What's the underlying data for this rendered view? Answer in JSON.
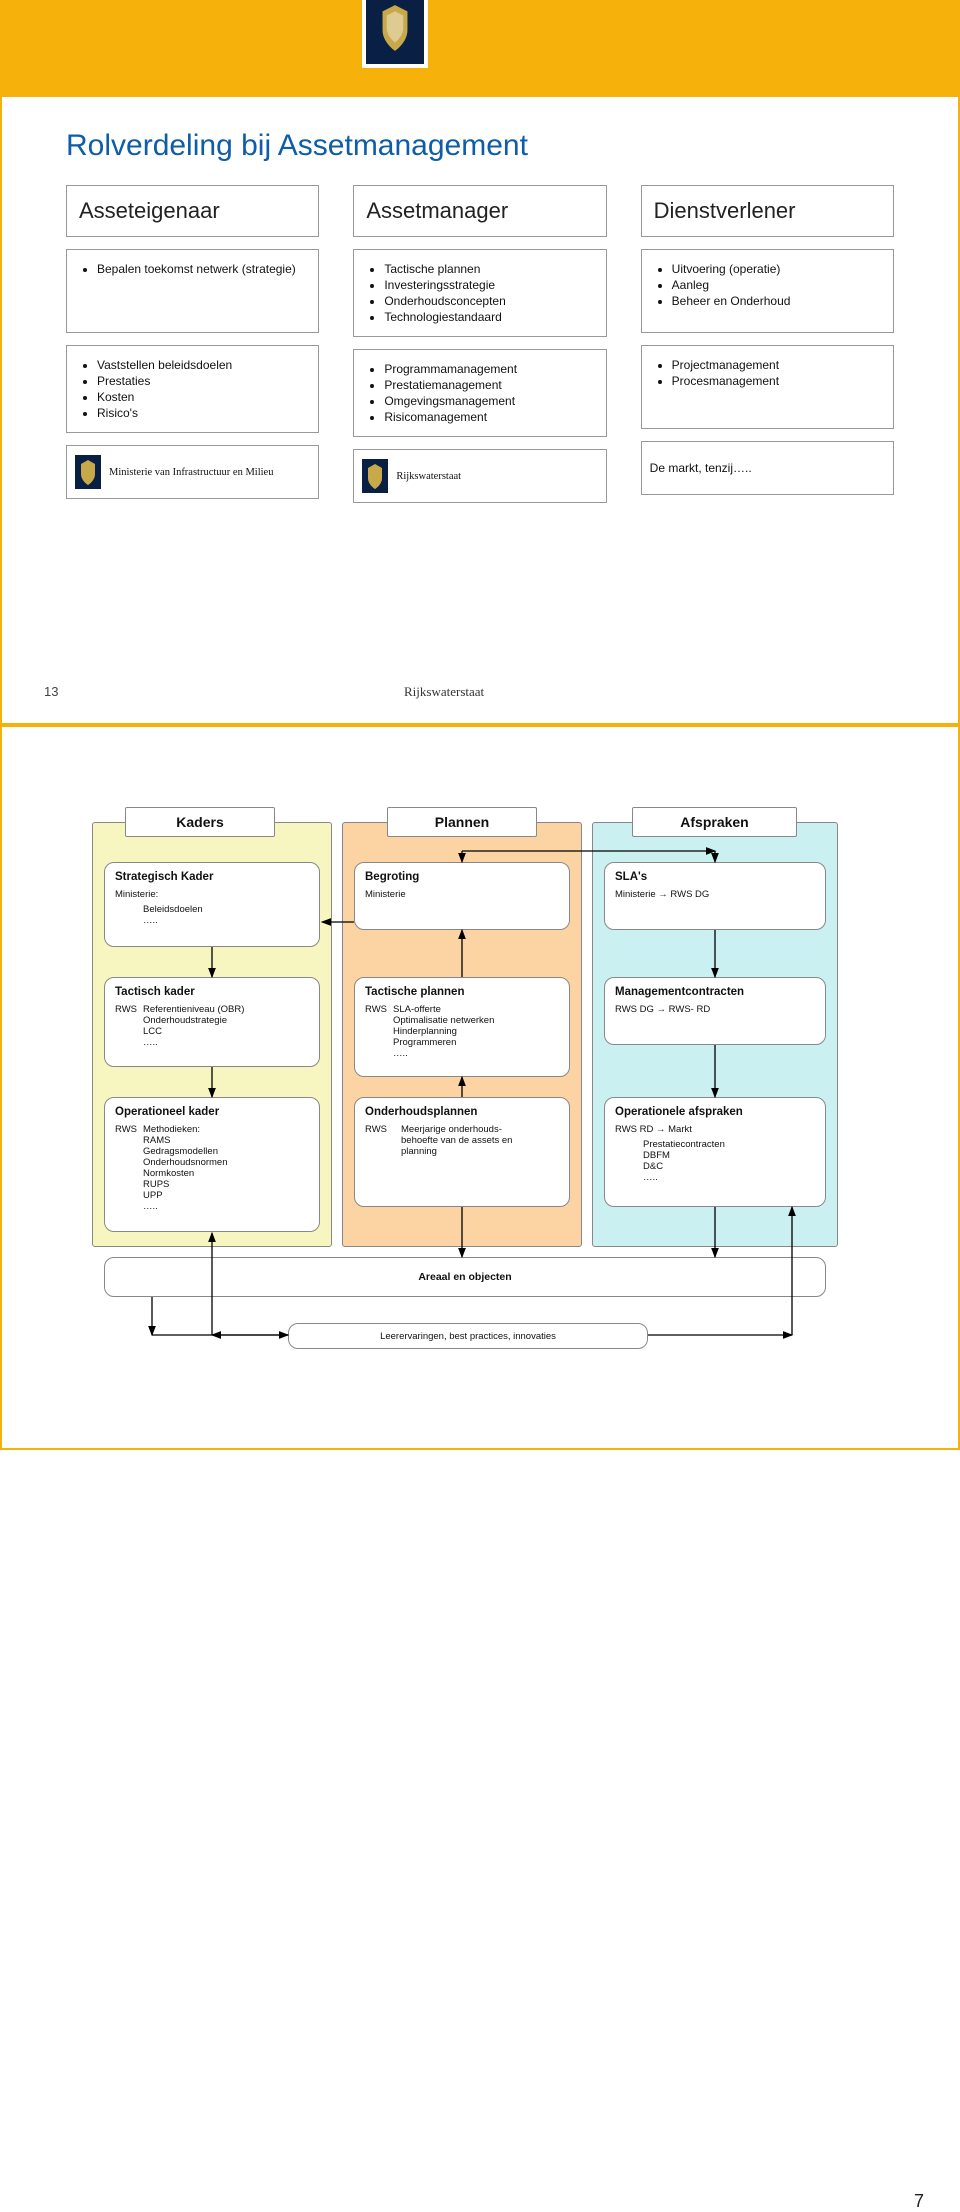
{
  "colors": {
    "gold": "#f6b20b",
    "blue_title": "#0e5da8",
    "yellow_bg": "#f7f6c1",
    "orange_bg": "#fcd3a2",
    "cyan_bg": "#cbf0f2",
    "navy_crest": "#0a1f44"
  },
  "slide1": {
    "title": "Rolverdeling bij Assetmanagement",
    "page_number": "13",
    "footer_rws": "Rijkswaterstaat",
    "columns": [
      {
        "header": "Asseteigenaar",
        "box_a": [
          "Bepalen toekomst netwerk (strategie)"
        ],
        "box_b": [
          "Vaststellen beleidsdoelen",
          "Prestaties",
          "Kosten",
          "Risico's"
        ],
        "org": "Ministerie van Infrastructuur en Milieu",
        "org_has_crest": true
      },
      {
        "header": "Assetmanager",
        "box_a": [
          "Tactische plannen",
          "Investeringsstrategie",
          "Onderhoudsconcepten",
          "Technologiestandaard"
        ],
        "box_b": [
          "Programmamanagement",
          "Prestatiemanagement",
          "Omgevingsmanagement",
          "Risicomanagement"
        ],
        "org": "Rijkswaterstaat",
        "org_has_crest": true
      },
      {
        "header": "Dienstverlener",
        "box_a": [
          "Uitvoering (operatie)",
          "Aanleg",
          "Beheer en Onderhoud"
        ],
        "box_b": [
          "Projectmanagement",
          "Procesmanagement"
        ],
        "org": "De markt, tenzij…..",
        "org_has_crest": false
      }
    ]
  },
  "slide2": {
    "tabs": {
      "kaders": "Kaders",
      "plannen": "Plannen",
      "afspraken": "Afspraken"
    },
    "row1": {
      "a": {
        "title": "Strategisch Kader",
        "sub": "Ministerie:",
        "lines": [
          "Beleidsdoelen",
          "….."
        ]
      },
      "b": {
        "title": "Begroting",
        "sub": "Ministerie"
      },
      "c": {
        "title": "SLA's",
        "sub": "Ministerie → RWS DG"
      }
    },
    "row2": {
      "a": {
        "title": "Tactisch kader",
        "sub": "RWS",
        "lines": [
          "Referentieniveau (OBR)",
          "Onderhoudstrategie",
          "LCC",
          "….."
        ]
      },
      "b": {
        "title": "Tactische plannen",
        "sub": "RWS",
        "lines": [
          "SLA-offerte",
          "Optimalisatie netwerken",
          "Hinderplanning",
          "Programmeren",
          "….."
        ]
      },
      "c": {
        "title": "Managementcontracten",
        "sub": "RWS DG → RWS- RD"
      }
    },
    "row3": {
      "a": {
        "title": "Operationeel kader",
        "sub": "RWS",
        "lines": [
          "Methodieken:",
          "RAMS",
          "Gedragsmodellen",
          "Onderhoudsnormen",
          "Normkosten",
          "RUPS",
          "UPP",
          "….."
        ]
      },
      "b": {
        "title": "Onderhoudsplannen",
        "sub": "RWS",
        "lines": [
          "Meerjarige onderhouds-",
          "behoefte van de assets en",
          "planning"
        ]
      },
      "c": {
        "title": "Operationele afspraken",
        "sub": "RWS RD → Markt",
        "lines": [
          "Prestatiecontracten",
          "DBFM",
          "D&C",
          "….."
        ]
      }
    },
    "bottom_wide": "Areaal en objecten",
    "feedback_wide": "Leerervaringen, best practices, innovaties"
  },
  "page_number_bottom": "7"
}
